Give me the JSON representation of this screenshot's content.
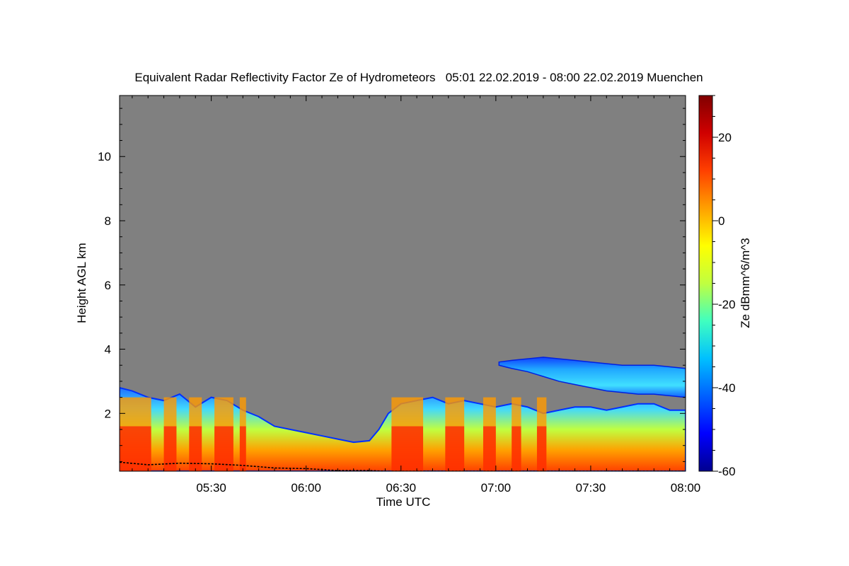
{
  "chart_data": {
    "type": "heatmap",
    "title": "Equivalent Radar Reflectivity Factor Ze of Hydrometeors   05:01 22.02.2019 - 08:00 22.02.2019 Muenchen",
    "xlabel": "Time UTC",
    "ylabel": "Height AGL km",
    "colorbar_label": "Ze dBmm^6/m^3",
    "x_range_min": [
      301,
      480
    ],
    "ylim": [
      0.2,
      11.9
    ],
    "colorbar_range": [
      -60,
      30
    ],
    "x_ticks": [
      {
        "min": 330,
        "label": "05:30"
      },
      {
        "min": 360,
        "label": "06:00"
      },
      {
        "min": 390,
        "label": "06:30"
      },
      {
        "min": 420,
        "label": "07:00"
      },
      {
        "min": 450,
        "label": "07:30"
      },
      {
        "min": 480,
        "label": "08:00"
      }
    ],
    "y_ticks": [
      {
        "value": 2,
        "label": "2"
      },
      {
        "value": 4,
        "label": "4"
      },
      {
        "value": 6,
        "label": "6"
      },
      {
        "value": 8,
        "label": "8"
      },
      {
        "value": 10,
        "label": "10"
      }
    ],
    "colorbar_ticks": [
      {
        "value": 20,
        "label": "20"
      },
      {
        "value": 0,
        "label": "0"
      },
      {
        "value": -20,
        "label": "-20"
      },
      {
        "value": -40,
        "label": "-40"
      },
      {
        "value": -60,
        "label": "-60"
      }
    ],
    "background_color": "#808080",
    "series": [
      {
        "role": "low cloud / precipitation top height (km)",
        "x": [
          301,
          305,
          310,
          315,
          320,
          325,
          330,
          335,
          340,
          345,
          350,
          355,
          360,
          365,
          370,
          375,
          380,
          383,
          386,
          390,
          395,
          400,
          405,
          410,
          415,
          420,
          425,
          430,
          435,
          440,
          445,
          450,
          455,
          460,
          465,
          470,
          475,
          480
        ],
        "y": [
          2.8,
          2.7,
          2.5,
          2.4,
          2.6,
          2.2,
          2.5,
          2.4,
          2.1,
          1.9,
          1.6,
          1.5,
          1.4,
          1.3,
          1.2,
          1.1,
          1.15,
          1.5,
          2.0,
          2.3,
          2.4,
          2.5,
          2.3,
          2.4,
          2.3,
          2.2,
          2.3,
          2.2,
          2.0,
          2.1,
          2.2,
          2.2,
          2.1,
          2.2,
          2.3,
          2.3,
          2.1,
          2.1
        ]
      },
      {
        "role": "upper cloud layer (km)",
        "x": [
          421,
          425,
          430,
          435,
          440,
          445,
          450,
          455,
          460,
          465,
          470,
          475,
          480
        ],
        "top": [
          3.6,
          3.65,
          3.7,
          3.75,
          3.7,
          3.65,
          3.6,
          3.55,
          3.5,
          3.5,
          3.5,
          3.45,
          3.4
        ],
        "bottom": [
          3.5,
          3.4,
          3.3,
          3.15,
          3.0,
          2.9,
          2.8,
          2.7,
          2.65,
          2.6,
          2.6,
          2.55,
          2.5
        ]
      },
      {
        "role": "strong echo periods (Ze above 10 dBZ), minutes",
        "intervals": [
          [
            301,
            311
          ],
          [
            315,
            319
          ],
          [
            323,
            327
          ],
          [
            331,
            337
          ],
          [
            339,
            341
          ],
          [
            387,
            397
          ],
          [
            404,
            410
          ],
          [
            416,
            420
          ],
          [
            425,
            428
          ],
          [
            433,
            436
          ]
        ]
      },
      {
        "role": "lowest detected level (km)",
        "x": [
          301,
          310,
          320,
          330,
          340,
          350,
          360,
          370,
          380,
          385,
          390,
          395,
          400,
          410,
          420,
          430,
          440,
          450,
          460,
          470,
          480
        ],
        "y": [
          0.48,
          0.4,
          0.45,
          0.43,
          0.38,
          0.3,
          0.28,
          0.22,
          0.22,
          0.2,
          0.2,
          0.2,
          0.2,
          0.2,
          0.2,
          0.2,
          0.2,
          0.2,
          0.2,
          0.2,
          0.2
        ]
      }
    ],
    "colormap": [
      "#00008f",
      "#0000ff",
      "#0060ff",
      "#00c0ff",
      "#40ffbf",
      "#c0ff40",
      "#ffff00",
      "#ffa000",
      "#ff4000",
      "#d00000",
      "#800000"
    ]
  }
}
